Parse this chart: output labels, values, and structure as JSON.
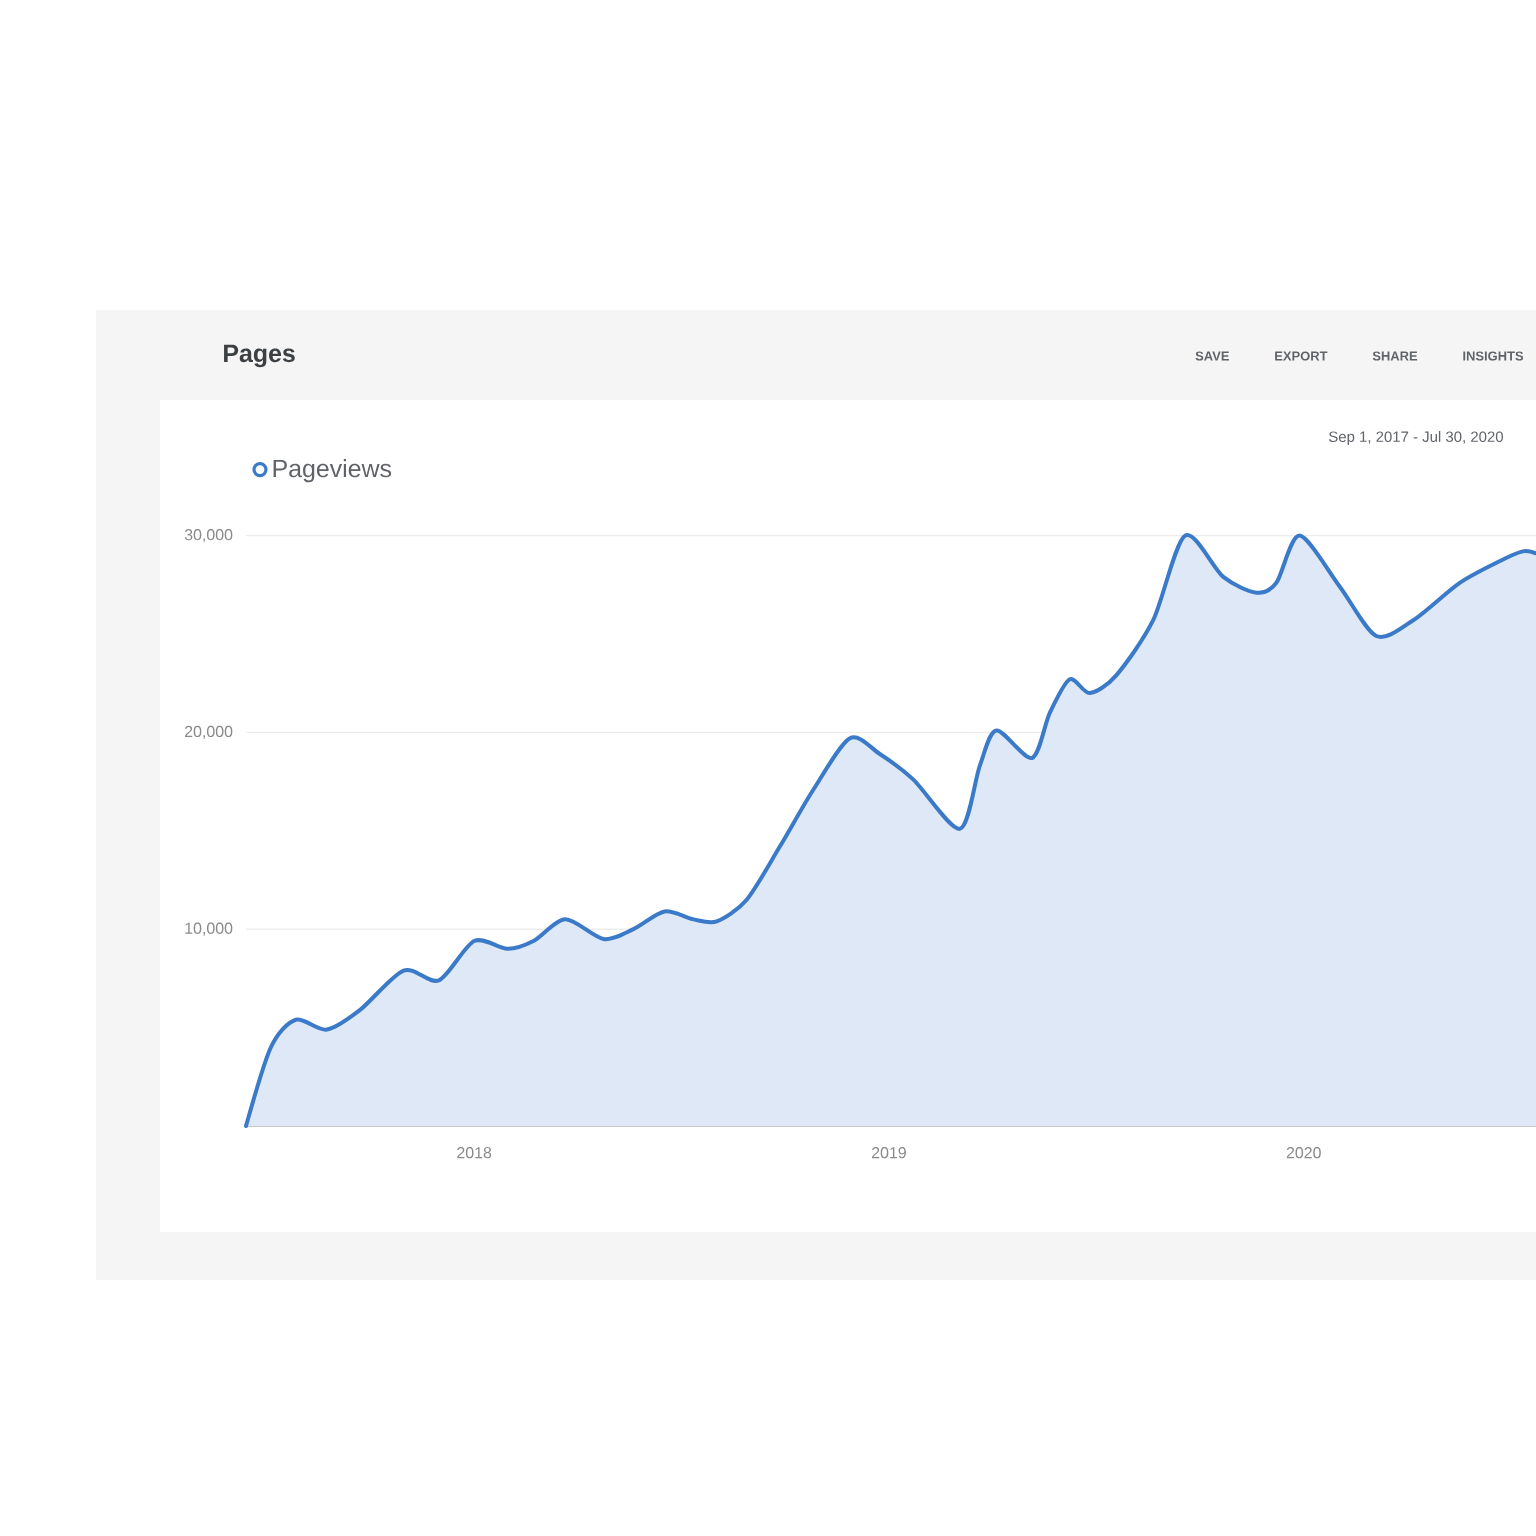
{
  "chart_data": {
    "type": "area",
    "title": "Pages",
    "subtitle": "Sep 1, 2017 - Jul 30, 2020",
    "annotations": [
      "SAVE",
      "EXPORT",
      "SHARE",
      "INSIGHTS"
    ],
    "x": [
      2017.45,
      2017.51,
      2017.57,
      2017.645,
      2017.725,
      2017.83,
      2017.915,
      2018.0,
      2018.08,
      2018.143,
      2018.22,
      2018.312,
      2018.384,
      2018.459,
      2018.529,
      2018.585,
      2018.657,
      2018.737,
      2018.818,
      2018.906,
      2018.978,
      2019.059,
      2019.171,
      2019.219,
      2019.259,
      2019.345,
      2019.388,
      2019.436,
      2019.484,
      2019.548,
      2019.637,
      2019.714,
      2019.806,
      2019.886,
      2019.934,
      2019.99,
      2020.087,
      2020.175,
      2020.264,
      2020.376,
      2020.472,
      2020.528,
      2020.56
    ],
    "series": [
      {
        "name": "Pageviews",
        "color": "#3b7ac8",
        "values": [
          0,
          4000,
          5400,
          4900,
          5900,
          7900,
          7400,
          9400,
          9000,
          9400,
          10500,
          9500,
          10000,
          10900,
          10500,
          10400,
          11500,
          14200,
          17100,
          19700,
          18900,
          17600,
          15100,
          18300,
          20100,
          18700,
          21000,
          22700,
          22000,
          22900,
          25700,
          30000,
          27900,
          27100,
          27600,
          30000,
          27400,
          24900,
          25700,
          27600,
          28700,
          29200,
          29100
        ]
      }
    ],
    "xlim": [
      2017.45,
      2020.56
    ],
    "ylim": [
      0,
      30000
    ],
    "xticks": [
      2018,
      2019,
      2020
    ],
    "yticks": [
      {
        "value": 10000,
        "label": "10,000"
      },
      {
        "value": 20000,
        "label": "20,000"
      },
      {
        "value": 30000,
        "label": "30,000"
      }
    ],
    "grid": "y",
    "legend": "top left"
  }
}
